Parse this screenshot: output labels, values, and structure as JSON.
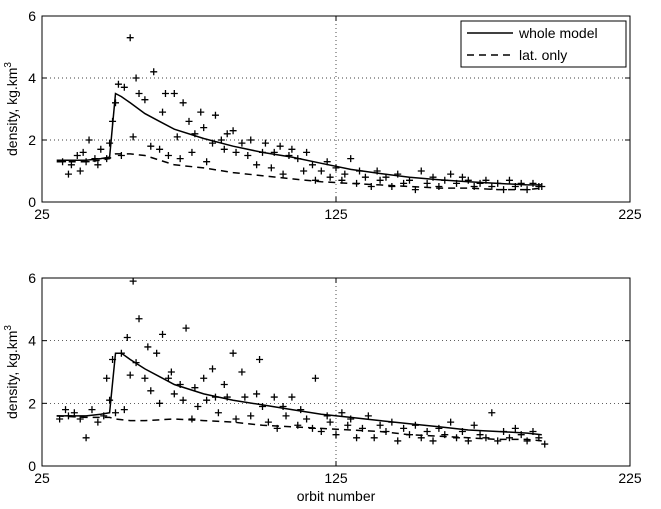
{
  "chart_data": [
    {
      "type": "line",
      "ylabel": "density, kg.km",
      "ylabel_sup": "3",
      "xlabel": "",
      "xlim": [
        25,
        225
      ],
      "ylim": [
        0,
        6
      ],
      "xticks": [
        "25",
        "125",
        "225"
      ],
      "yticks": [
        "0",
        "2",
        "4",
        "6"
      ],
      "grid": true,
      "legend_position": "top-right",
      "series": [
        {
          "name": "whole model",
          "style": "solid",
          "x": [
            30,
            40,
            45,
            48,
            50,
            52,
            55,
            60,
            65,
            70,
            80,
            90,
            100,
            110,
            120,
            130,
            140,
            150,
            160,
            170,
            180,
            190,
            195
          ],
          "y": [
            1.35,
            1.35,
            1.4,
            1.45,
            3.5,
            3.4,
            3.2,
            2.85,
            2.6,
            2.35,
            2.05,
            1.8,
            1.6,
            1.45,
            1.25,
            1.05,
            0.92,
            0.8,
            0.72,
            0.65,
            0.6,
            0.55,
            0.55
          ]
        },
        {
          "name": "lat. only",
          "style": "dashed",
          "x": [
            30,
            40,
            45,
            48,
            50,
            55,
            60,
            70,
            80,
            90,
            100,
            110,
            120,
            130,
            140,
            150,
            160,
            170,
            180,
            190,
            195
          ],
          "y": [
            1.3,
            1.3,
            1.35,
            1.4,
            1.55,
            1.55,
            1.5,
            1.2,
            1.1,
            0.95,
            0.85,
            0.75,
            0.65,
            0.6,
            0.55,
            0.5,
            0.45,
            0.45,
            0.4,
            0.4,
            0.45
          ]
        },
        {
          "name": "",
          "style": "markers",
          "x": [
            32,
            34,
            35,
            37,
            38,
            39,
            40,
            41,
            43,
            44,
            45,
            47,
            48,
            49,
            50,
            51,
            52,
            53,
            55,
            56,
            57,
            58,
            60,
            62,
            63,
            65,
            66,
            67,
            68,
            70,
            71,
            72,
            73,
            75,
            76,
            77,
            79,
            80,
            81,
            83,
            84,
            86,
            87,
            88,
            90,
            91,
            93,
            95,
            96,
            98,
            100,
            101,
            103,
            104,
            106,
            107,
            109,
            110,
            112,
            114,
            115,
            117,
            118,
            120,
            122,
            123,
            125,
            127,
            128,
            130,
            132,
            133,
            135,
            137,
            139,
            140,
            142,
            144,
            146,
            148,
            150,
            152,
            154,
            156,
            158,
            160,
            162,
            164,
            166,
            168,
            170,
            172,
            174,
            176,
            178,
            180,
            182,
            184,
            186,
            188,
            190,
            192,
            194,
            195
          ],
          "y": [
            1.3,
            0.9,
            1.2,
            1.5,
            1.0,
            1.6,
            1.3,
            2.0,
            1.4,
            1.2,
            1.7,
            1.4,
            1.9,
            2.6,
            3.2,
            3.8,
            1.5,
            3.7,
            5.3,
            2.1,
            4.0,
            3.5,
            3.3,
            1.8,
            4.2,
            1.7,
            2.9,
            3.5,
            1.5,
            3.5,
            2.1,
            1.4,
            3.2,
            2.6,
            1.6,
            2.2,
            2.9,
            2.4,
            1.3,
            1.9,
            2.8,
            2.0,
            1.7,
            2.2,
            2.3,
            1.6,
            1.9,
            1.5,
            2.0,
            1.2,
            1.6,
            1.9,
            1.1,
            1.6,
            1.8,
            0.9,
            1.5,
            1.7,
            1.4,
            1.0,
            1.6,
            1.2,
            0.7,
            1.0,
            1.3,
            0.8,
            1.1,
            0.7,
            0.9,
            1.4,
            0.6,
            1.0,
            0.8,
            0.5,
            1.0,
            0.7,
            0.8,
            0.5,
            0.9,
            0.6,
            0.7,
            0.4,
            1.0,
            0.6,
            0.8,
            0.5,
            0.7,
            0.9,
            0.6,
            0.8,
            0.7,
            0.5,
            0.6,
            0.7,
            0.5,
            0.6,
            0.4,
            0.7,
            0.5,
            0.6,
            0.4,
            0.6,
            0.5,
            0.5
          ]
        }
      ]
    },
    {
      "type": "line",
      "ylabel": "density, kg.km",
      "ylabel_sup": "3",
      "xlabel": "orbit number",
      "xlim": [
        25,
        225
      ],
      "ylim": [
        0,
        6
      ],
      "xticks": [
        "25",
        "125",
        "225"
      ],
      "yticks": [
        "0",
        "2",
        "4",
        "6"
      ],
      "grid": true,
      "series": [
        {
          "name": "whole model",
          "style": "solid",
          "x": [
            30,
            40,
            45,
            48,
            50,
            52,
            55,
            60,
            65,
            70,
            80,
            90,
            100,
            110,
            120,
            130,
            140,
            150,
            160,
            170,
            180,
            190,
            195
          ],
          "y": [
            1.6,
            1.6,
            1.65,
            1.7,
            3.6,
            3.6,
            3.4,
            3.1,
            2.85,
            2.6,
            2.3,
            2.1,
            1.95,
            1.8,
            1.65,
            1.55,
            1.45,
            1.35,
            1.25,
            1.15,
            1.1,
            1.05,
            1.0
          ]
        },
        {
          "name": "lat. only",
          "style": "dashed",
          "x": [
            30,
            40,
            45,
            48,
            50,
            55,
            60,
            70,
            80,
            90,
            100,
            110,
            120,
            130,
            140,
            150,
            160,
            170,
            180,
            190,
            195
          ],
          "y": [
            1.6,
            1.55,
            1.55,
            1.55,
            1.5,
            1.45,
            1.45,
            1.5,
            1.45,
            1.4,
            1.3,
            1.25,
            1.2,
            1.15,
            1.1,
            1.0,
            0.95,
            0.9,
            0.85,
            0.85,
            0.8
          ]
        },
        {
          "name": "",
          "style": "markers",
          "x": [
            31,
            33,
            34,
            36,
            38,
            40,
            42,
            44,
            46,
            47,
            48,
            49,
            50,
            52,
            53,
            54,
            55,
            56,
            57,
            58,
            60,
            61,
            62,
            64,
            65,
            66,
            68,
            69,
            70,
            72,
            73,
            74,
            76,
            77,
            78,
            80,
            81,
            83,
            84,
            85,
            87,
            88,
            90,
            91,
            93,
            94,
            96,
            98,
            99,
            100,
            102,
            104,
            105,
            107,
            108,
            110,
            112,
            113,
            115,
            117,
            118,
            120,
            122,
            123,
            125,
            127,
            129,
            130,
            132,
            134,
            136,
            138,
            140,
            142,
            144,
            146,
            148,
            150,
            152,
            154,
            156,
            158,
            160,
            162,
            164,
            166,
            168,
            170,
            172,
            174,
            176,
            178,
            180,
            182,
            184,
            186,
            188,
            190,
            192,
            194,
            196
          ],
          "y": [
            1.5,
            1.8,
            1.6,
            1.7,
            1.5,
            0.9,
            1.8,
            1.4,
            1.6,
            2.8,
            2.1,
            3.4,
            1.7,
            3.6,
            1.8,
            4.1,
            2.9,
            5.9,
            3.3,
            4.7,
            2.8,
            3.8,
            2.4,
            3.6,
            2.0,
            4.2,
            2.8,
            3.0,
            2.3,
            2.6,
            2.1,
            4.4,
            1.5,
            2.5,
            1.9,
            2.8,
            2.1,
            3.1,
            2.2,
            1.7,
            2.6,
            2.2,
            3.6,
            1.5,
            3.0,
            2.2,
            1.6,
            2.3,
            3.4,
            1.9,
            1.4,
            2.2,
            1.2,
            1.9,
            1.6,
            2.2,
            1.3,
            1.8,
            1.5,
            1.2,
            2.8,
            1.1,
            1.6,
            1.4,
            1.0,
            1.7,
            1.3,
            1.5,
            0.9,
            1.2,
            1.6,
            0.9,
            1.3,
            1.1,
            1.4,
            0.8,
            1.2,
            1.0,
            1.3,
            0.9,
            1.1,
            0.8,
            1.2,
            1.0,
            1.4,
            0.9,
            1.1,
            0.8,
            1.3,
            1.0,
            0.9,
            1.7,
            0.8,
            1.1,
            0.9,
            1.2,
            1.0,
            0.8,
            1.1,
            0.9,
            0.7
          ]
        }
      ]
    }
  ]
}
